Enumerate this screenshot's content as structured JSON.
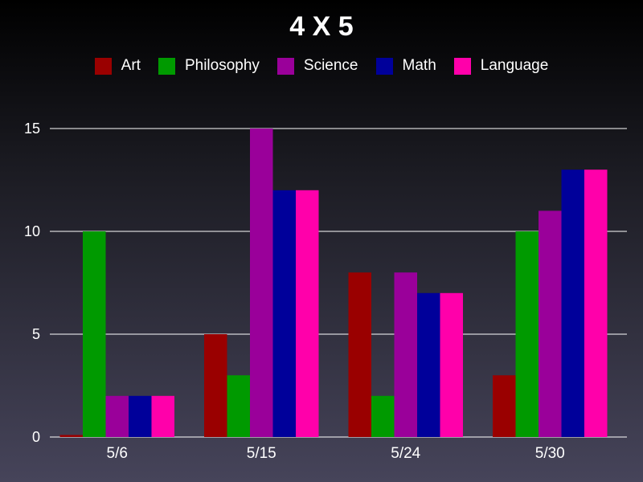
{
  "chart_data": {
    "type": "bar",
    "title": "4 X 5",
    "xlabel": "",
    "ylabel": "",
    "categories": [
      "5/6",
      "5/15",
      "5/24",
      "5/30"
    ],
    "series": [
      {
        "name": "Art",
        "color": "#9a0000",
        "values": [
          0.1,
          5,
          8,
          3
        ]
      },
      {
        "name": "Philosophy",
        "color": "#009a00",
        "values": [
          10,
          3,
          2,
          10
        ]
      },
      {
        "name": "Science",
        "color": "#9a009a",
        "values": [
          2,
          15,
          8,
          11
        ]
      },
      {
        "name": "Math",
        "color": "#00009a",
        "values": [
          2,
          12,
          7,
          13
        ]
      },
      {
        "name": "Language",
        "color": "#ff00aa",
        "values": [
          2,
          12,
          7,
          13
        ]
      }
    ],
    "ylim": [
      0,
      15
    ],
    "yticks": [
      0,
      5,
      10,
      15
    ],
    "grid": true,
    "legend_position": "top"
  }
}
